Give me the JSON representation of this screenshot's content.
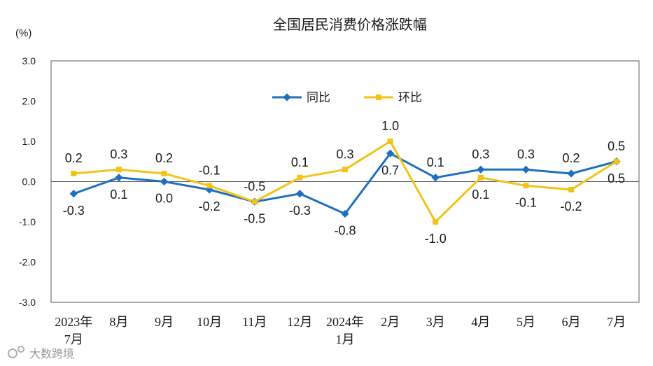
{
  "chart_data": {
    "type": "line",
    "title": "全国居民消费价格涨跌幅",
    "unit_label": "(%)",
    "ylim": [
      -3.0,
      3.0
    ],
    "y_ticks": [
      "3.0",
      "2.0",
      "1.0",
      "0.0",
      "-1.0",
      "-2.0",
      "-3.0"
    ],
    "categories": [
      [
        "2023年",
        "7月"
      ],
      [
        "8月"
      ],
      [
        "9月"
      ],
      [
        "10月"
      ],
      [
        "11月"
      ],
      [
        "12月"
      ],
      [
        "2024年",
        "1月"
      ],
      [
        "2月"
      ],
      [
        "3月"
      ],
      [
        "4月"
      ],
      [
        "5月"
      ],
      [
        "6月"
      ],
      [
        "7月"
      ]
    ],
    "series": [
      {
        "name": "同比",
        "color": "#1F6FBF",
        "marker": "diamond",
        "values": [
          -0.3,
          0.1,
          0.0,
          -0.2,
          -0.5,
          -0.3,
          -0.8,
          0.7,
          0.1,
          0.3,
          0.3,
          0.2,
          0.5
        ],
        "labels": [
          "-0.3",
          "0.1",
          "0.0",
          "-0.2",
          "-0.5",
          "-0.3",
          "-0.8",
          "0.7",
          "0.1",
          "0.3",
          "0.3",
          "0.2",
          "0.5"
        ],
        "label_pos": [
          "below",
          "below",
          "below",
          "below",
          "below",
          "below",
          "below",
          "below",
          "above",
          "above",
          "above",
          "above",
          "below"
        ]
      },
      {
        "name": "环比",
        "color": "#F2C318",
        "marker": "square",
        "values": [
          0.2,
          0.3,
          0.2,
          -0.1,
          -0.5,
          0.1,
          0.3,
          1.0,
          -1.0,
          0.1,
          -0.1,
          -0.2,
          0.5
        ],
        "labels": [
          "0.2",
          "0.3",
          "0.2",
          "-0.1",
          "-0.5",
          "0.1",
          "0.3",
          "1.0",
          "-1.0",
          "0.1",
          "-0.1",
          "-0.2",
          "0.5"
        ],
        "label_pos": [
          "above",
          "above",
          "above",
          "above",
          "above",
          "above",
          "above",
          "above",
          "below",
          "below",
          "below",
          "below",
          "above"
        ]
      }
    ],
    "legend_position": "top-center",
    "grid": false
  },
  "watermark": "大数跨境"
}
